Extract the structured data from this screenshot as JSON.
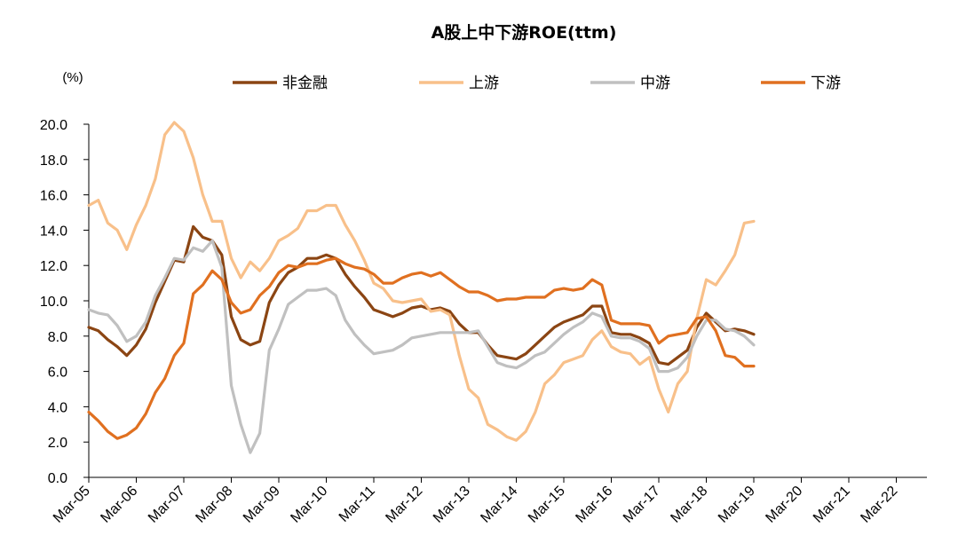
{
  "chart_data": {
    "type": "line",
    "title": "A股上中下游ROE(ttm)",
    "unit_label": "(%)",
    "ylim": [
      0,
      20
    ],
    "y_ticks": [
      "0.0",
      "2.0",
      "4.0",
      "6.0",
      "8.0",
      "10.0",
      "12.0",
      "14.0",
      "16.0",
      "18.0",
      "20.0"
    ],
    "x_ticks": [
      "Mar-05",
      "Mar-06",
      "Mar-07",
      "Mar-08",
      "Mar-09",
      "Mar-10",
      "Mar-11",
      "Mar-12",
      "Mar-13",
      "Mar-14",
      "Mar-15",
      "Mar-16",
      "Mar-17",
      "Mar-18",
      "Mar-19",
      "Mar-20",
      "Mar-21",
      "Mar-22"
    ],
    "x_start": 2005.0,
    "grid": false,
    "legend_position": "top",
    "series": [
      {
        "name": "非金融",
        "color": "#8B4513",
        "values": [
          [
            2005.0,
            8.5
          ],
          [
            2005.2,
            8.3
          ],
          [
            2005.4,
            7.8
          ],
          [
            2005.6,
            7.4
          ],
          [
            2005.8,
            6.9
          ],
          [
            2006.0,
            7.5
          ],
          [
            2006.2,
            8.4
          ],
          [
            2006.4,
            9.9
          ],
          [
            2006.6,
            11.1
          ],
          [
            2006.8,
            12.3
          ],
          [
            2007.0,
            12.2
          ],
          [
            2007.2,
            14.2
          ],
          [
            2007.4,
            13.6
          ],
          [
            2007.6,
            13.4
          ],
          [
            2007.8,
            12.6
          ],
          [
            2008.0,
            9.1
          ],
          [
            2008.2,
            7.8
          ],
          [
            2008.4,
            7.5
          ],
          [
            2008.6,
            7.7
          ],
          [
            2008.8,
            9.9
          ],
          [
            2009.0,
            10.9
          ],
          [
            2009.2,
            11.6
          ],
          [
            2009.4,
            11.9
          ],
          [
            2009.6,
            12.4
          ],
          [
            2009.8,
            12.4
          ],
          [
            2010.0,
            12.6
          ],
          [
            2010.2,
            12.4
          ],
          [
            2010.4,
            11.5
          ],
          [
            2010.6,
            10.8
          ],
          [
            2010.8,
            10.2
          ],
          [
            2011.0,
            9.5
          ],
          [
            2011.2,
            9.3
          ],
          [
            2011.4,
            9.1
          ],
          [
            2011.6,
            9.3
          ],
          [
            2011.8,
            9.6
          ],
          [
            2012.0,
            9.7
          ],
          [
            2012.2,
            9.5
          ],
          [
            2012.4,
            9.6
          ],
          [
            2012.6,
            9.4
          ],
          [
            2012.8,
            8.7
          ],
          [
            2013.0,
            8.2
          ],
          [
            2013.2,
            8.2
          ],
          [
            2013.4,
            7.5
          ],
          [
            2013.6,
            6.9
          ],
          [
            2013.8,
            6.8
          ],
          [
            2014.0,
            6.7
          ],
          [
            2014.2,
            7.0
          ],
          [
            2014.4,
            7.5
          ],
          [
            2014.6,
            8.0
          ],
          [
            2014.8,
            8.5
          ],
          [
            2015.0,
            8.8
          ],
          [
            2015.2,
            9.0
          ],
          [
            2015.4,
            9.2
          ],
          [
            2015.6,
            9.7
          ],
          [
            2015.8,
            9.7
          ],
          [
            2016.0,
            8.2
          ],
          [
            2016.2,
            8.1
          ],
          [
            2016.4,
            8.1
          ],
          [
            2016.6,
            7.9
          ],
          [
            2016.8,
            7.6
          ],
          [
            2017.0,
            6.5
          ],
          [
            2017.2,
            6.4
          ],
          [
            2017.4,
            6.8
          ],
          [
            2017.6,
            7.2
          ],
          [
            2017.8,
            8.5
          ],
          [
            2018.0,
            9.3
          ],
          [
            2018.2,
            8.8
          ],
          [
            2018.4,
            8.3
          ],
          [
            2018.6,
            8.4
          ],
          [
            2018.8,
            8.3
          ],
          [
            2019.0,
            8.1
          ]
        ]
      },
      {
        "name": "上游",
        "color": "#F8C08A",
        "values": [
          [
            2005.0,
            15.4
          ],
          [
            2005.2,
            15.7
          ],
          [
            2005.4,
            14.4
          ],
          [
            2005.6,
            14.0
          ],
          [
            2005.8,
            12.9
          ],
          [
            2006.0,
            14.3
          ],
          [
            2006.2,
            15.4
          ],
          [
            2006.4,
            16.9
          ],
          [
            2006.6,
            19.4
          ],
          [
            2006.8,
            20.1
          ],
          [
            2007.0,
            19.6
          ],
          [
            2007.2,
            18.1
          ],
          [
            2007.4,
            16.0
          ],
          [
            2007.6,
            14.5
          ],
          [
            2007.8,
            14.5
          ],
          [
            2008.0,
            12.4
          ],
          [
            2008.2,
            11.3
          ],
          [
            2008.4,
            12.2
          ],
          [
            2008.6,
            11.7
          ],
          [
            2008.8,
            12.4
          ],
          [
            2009.0,
            13.4
          ],
          [
            2009.2,
            13.7
          ],
          [
            2009.4,
            14.1
          ],
          [
            2009.6,
            15.1
          ],
          [
            2009.8,
            15.1
          ],
          [
            2010.0,
            15.4
          ],
          [
            2010.2,
            15.4
          ],
          [
            2010.4,
            14.3
          ],
          [
            2010.6,
            13.4
          ],
          [
            2010.8,
            12.3
          ],
          [
            2011.0,
            11.0
          ],
          [
            2011.2,
            10.7
          ],
          [
            2011.4,
            10.0
          ],
          [
            2011.6,
            9.9
          ],
          [
            2011.8,
            10.0
          ],
          [
            2012.0,
            10.1
          ],
          [
            2012.2,
            9.4
          ],
          [
            2012.4,
            9.5
          ],
          [
            2012.6,
            9.2
          ],
          [
            2012.8,
            6.9
          ],
          [
            2013.0,
            5.0
          ],
          [
            2013.2,
            4.5
          ],
          [
            2013.4,
            3.0
          ],
          [
            2013.6,
            2.7
          ],
          [
            2013.8,
            2.3
          ],
          [
            2014.0,
            2.1
          ],
          [
            2014.2,
            2.6
          ],
          [
            2014.4,
            3.7
          ],
          [
            2014.6,
            5.3
          ],
          [
            2014.8,
            5.8
          ],
          [
            2015.0,
            6.5
          ],
          [
            2015.2,
            6.7
          ],
          [
            2015.4,
            6.9
          ],
          [
            2015.6,
            7.8
          ],
          [
            2015.8,
            8.3
          ],
          [
            2016.0,
            7.4
          ],
          [
            2016.2,
            7.1
          ],
          [
            2016.4,
            7.0
          ],
          [
            2016.6,
            6.4
          ],
          [
            2016.8,
            6.8
          ],
          [
            2017.0,
            5.0
          ],
          [
            2017.2,
            3.7
          ],
          [
            2017.4,
            5.3
          ],
          [
            2017.6,
            6.0
          ],
          [
            2017.8,
            9.0
          ],
          [
            2018.0,
            11.2
          ],
          [
            2018.2,
            10.9
          ],
          [
            2018.4,
            11.7
          ],
          [
            2018.6,
            12.6
          ],
          [
            2018.8,
            14.4
          ],
          [
            2019.0,
            14.5
          ]
        ]
      },
      {
        "name": "中游",
        "color": "#C0C0C0",
        "values": [
          [
            2005.0,
            9.5
          ],
          [
            2005.2,
            9.3
          ],
          [
            2005.4,
            9.2
          ],
          [
            2005.6,
            8.6
          ],
          [
            2005.8,
            7.7
          ],
          [
            2006.0,
            8.0
          ],
          [
            2006.2,
            8.8
          ],
          [
            2006.4,
            10.3
          ],
          [
            2006.6,
            11.3
          ],
          [
            2006.8,
            12.4
          ],
          [
            2007.0,
            12.3
          ],
          [
            2007.2,
            13.0
          ],
          [
            2007.4,
            12.8
          ],
          [
            2007.6,
            13.4
          ],
          [
            2007.8,
            11.9
          ],
          [
            2008.0,
            5.2
          ],
          [
            2008.2,
            3.0
          ],
          [
            2008.4,
            1.4
          ],
          [
            2008.6,
            2.5
          ],
          [
            2008.8,
            7.2
          ],
          [
            2009.0,
            8.4
          ],
          [
            2009.2,
            9.8
          ],
          [
            2009.4,
            10.2
          ],
          [
            2009.6,
            10.6
          ],
          [
            2009.8,
            10.6
          ],
          [
            2010.0,
            10.7
          ],
          [
            2010.2,
            10.3
          ],
          [
            2010.4,
            8.9
          ],
          [
            2010.6,
            8.1
          ],
          [
            2010.8,
            7.5
          ],
          [
            2011.0,
            7.0
          ],
          [
            2011.2,
            7.1
          ],
          [
            2011.4,
            7.2
          ],
          [
            2011.6,
            7.5
          ],
          [
            2011.8,
            7.9
          ],
          [
            2012.0,
            8.0
          ],
          [
            2012.2,
            8.1
          ],
          [
            2012.4,
            8.2
          ],
          [
            2012.6,
            8.2
          ],
          [
            2012.8,
            8.2
          ],
          [
            2013.0,
            8.2
          ],
          [
            2013.2,
            8.3
          ],
          [
            2013.4,
            7.4
          ],
          [
            2013.6,
            6.5
          ],
          [
            2013.8,
            6.3
          ],
          [
            2014.0,
            6.2
          ],
          [
            2014.2,
            6.5
          ],
          [
            2014.4,
            6.9
          ],
          [
            2014.6,
            7.1
          ],
          [
            2014.8,
            7.6
          ],
          [
            2015.0,
            8.1
          ],
          [
            2015.2,
            8.5
          ],
          [
            2015.4,
            8.8
          ],
          [
            2015.6,
            9.3
          ],
          [
            2015.8,
            9.1
          ],
          [
            2016.0,
            8.0
          ],
          [
            2016.2,
            7.9
          ],
          [
            2016.4,
            7.9
          ],
          [
            2016.6,
            7.7
          ],
          [
            2016.8,
            7.3
          ],
          [
            2017.0,
            6.0
          ],
          [
            2017.2,
            6.0
          ],
          [
            2017.4,
            6.2
          ],
          [
            2017.6,
            6.8
          ],
          [
            2017.8,
            8.0
          ],
          [
            2018.0,
            8.9
          ],
          [
            2018.2,
            8.9
          ],
          [
            2018.4,
            8.4
          ],
          [
            2018.6,
            8.3
          ],
          [
            2018.8,
            8.0
          ],
          [
            2019.0,
            7.5
          ]
        ]
      },
      {
        "name": "下游",
        "color": "#E07020",
        "values": [
          [
            2005.0,
            3.7
          ],
          [
            2005.2,
            3.2
          ],
          [
            2005.4,
            2.6
          ],
          [
            2005.6,
            2.2
          ],
          [
            2005.8,
            2.4
          ],
          [
            2006.0,
            2.8
          ],
          [
            2006.2,
            3.6
          ],
          [
            2006.4,
            4.8
          ],
          [
            2006.6,
            5.6
          ],
          [
            2006.8,
            6.9
          ],
          [
            2007.0,
            7.6
          ],
          [
            2007.2,
            10.4
          ],
          [
            2007.4,
            10.9
          ],
          [
            2007.6,
            11.7
          ],
          [
            2007.8,
            11.2
          ],
          [
            2008.0,
            9.9
          ],
          [
            2008.2,
            9.3
          ],
          [
            2008.4,
            9.5
          ],
          [
            2008.6,
            10.3
          ],
          [
            2008.8,
            10.8
          ],
          [
            2009.0,
            11.6
          ],
          [
            2009.2,
            12.0
          ],
          [
            2009.4,
            11.9
          ],
          [
            2009.6,
            12.1
          ],
          [
            2009.8,
            12.1
          ],
          [
            2010.0,
            12.3
          ],
          [
            2010.2,
            12.4
          ],
          [
            2010.4,
            12.1
          ],
          [
            2010.6,
            11.9
          ],
          [
            2010.8,
            11.8
          ],
          [
            2011.0,
            11.5
          ],
          [
            2011.2,
            11.0
          ],
          [
            2011.4,
            11.0
          ],
          [
            2011.6,
            11.3
          ],
          [
            2011.8,
            11.5
          ],
          [
            2012.0,
            11.6
          ],
          [
            2012.2,
            11.4
          ],
          [
            2012.4,
            11.6
          ],
          [
            2012.6,
            11.2
          ],
          [
            2012.8,
            10.8
          ],
          [
            2013.0,
            10.5
          ],
          [
            2013.2,
            10.5
          ],
          [
            2013.4,
            10.3
          ],
          [
            2013.6,
            10.0
          ],
          [
            2013.8,
            10.1
          ],
          [
            2014.0,
            10.1
          ],
          [
            2014.2,
            10.2
          ],
          [
            2014.4,
            10.2
          ],
          [
            2014.6,
            10.2
          ],
          [
            2014.8,
            10.6
          ],
          [
            2015.0,
            10.7
          ],
          [
            2015.2,
            10.6
          ],
          [
            2015.4,
            10.7
          ],
          [
            2015.6,
            11.2
          ],
          [
            2015.8,
            10.9
          ],
          [
            2016.0,
            8.9
          ],
          [
            2016.2,
            8.7
          ],
          [
            2016.4,
            8.7
          ],
          [
            2016.6,
            8.7
          ],
          [
            2016.8,
            8.6
          ],
          [
            2017.0,
            7.6
          ],
          [
            2017.2,
            8.0
          ],
          [
            2017.4,
            8.1
          ],
          [
            2017.6,
            8.2
          ],
          [
            2017.8,
            9.0
          ],
          [
            2018.0,
            9.1
          ],
          [
            2018.2,
            8.3
          ],
          [
            2018.4,
            6.9
          ],
          [
            2018.6,
            6.8
          ],
          [
            2018.8,
            6.3
          ],
          [
            2019.0,
            6.3
          ]
        ]
      }
    ]
  }
}
